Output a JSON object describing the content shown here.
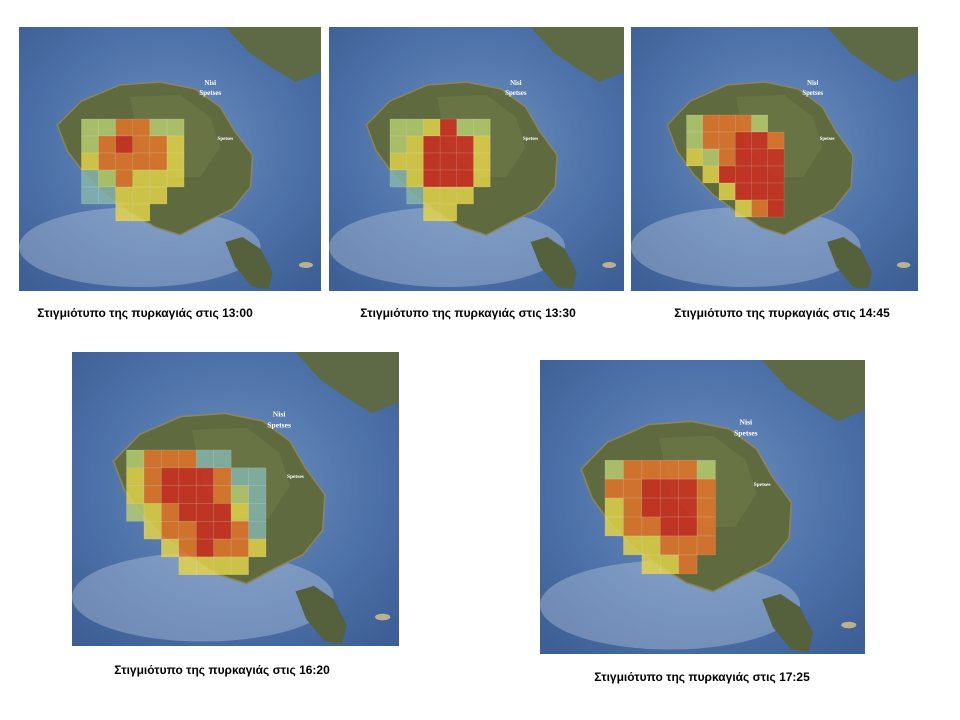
{
  "panels": [
    {
      "caption": "Στιγμιότυπο της πυρκαγιάς στις 13:00"
    },
    {
      "caption": "Στιγμιότυπο της πυρκαγιάς στις 13:30"
    },
    {
      "caption": "Στιγμιότυπο της πυρκαγιάς στις 14:45"
    },
    {
      "caption": "Στιγμιότυπο της πυρκαγιάς στις 16:20"
    },
    {
      "caption": "Στιγμιότυπο της πυρκαγιάς στις 17:25"
    }
  ],
  "map_labels": [
    "Nisi",
    "Spetses",
    "Spetses"
  ]
}
